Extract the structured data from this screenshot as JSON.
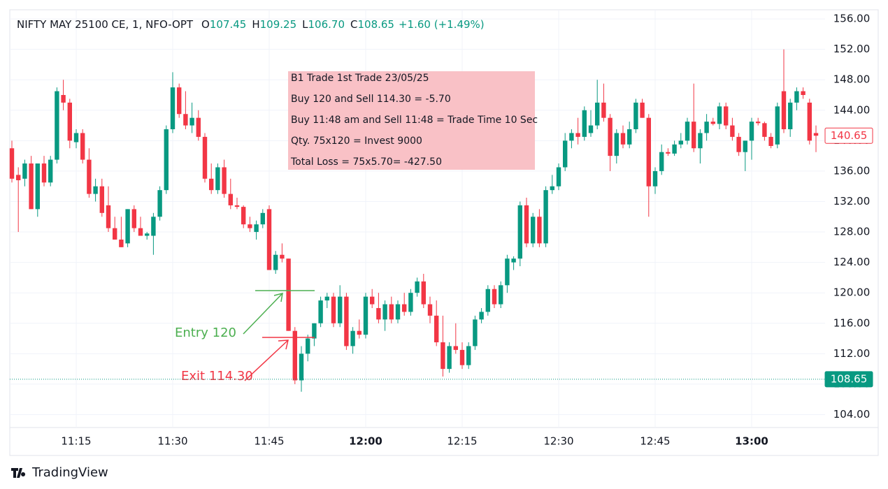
{
  "chart_data": {
    "type": "candlestick",
    "legend": {
      "symbol": "NIFTY MAY 25100 CE, 1, NFO-OPT",
      "items": [
        {
          "label": "O",
          "value": "107.45"
        },
        {
          "label": "H",
          "value": "109.25"
        },
        {
          "label": "L",
          "value": "106.70"
        },
        {
          "label": "C",
          "value": "108.65"
        }
      ],
      "change": "+1.60 (+1.49%)",
      "color": "#089981"
    },
    "up_color": "#089981",
    "down_color": "#f23645",
    "grid": true,
    "x": [
      "11:05",
      "11:06",
      "11:07",
      "11:08",
      "11:09",
      "11:10",
      "11:11",
      "11:12",
      "11:13",
      "11:14",
      "11:15",
      "11:16",
      "11:17",
      "11:18",
      "11:19",
      "11:20",
      "11:21",
      "11:22",
      "11:23",
      "11:24",
      "11:25",
      "11:26",
      "11:27",
      "11:28",
      "11:29",
      "11:30",
      "11:31",
      "11:32",
      "11:33",
      "11:34",
      "11:35",
      "11:36",
      "11:37",
      "11:38",
      "11:39",
      "11:40",
      "11:41",
      "11:42",
      "11:43",
      "11:44",
      "11:45",
      "11:46",
      "11:47",
      "11:48",
      "11:49",
      "11:50",
      "11:51",
      "11:52",
      "11:53",
      "11:54",
      "11:55",
      "11:56",
      "11:57",
      "11:58",
      "11:59",
      "12:00",
      "12:01",
      "12:02",
      "12:03",
      "12:04",
      "12:05",
      "12:06",
      "12:07",
      "12:08",
      "12:09",
      "12:10",
      "12:11",
      "12:12",
      "12:13",
      "12:14",
      "12:15",
      "12:16",
      "12:17",
      "12:18",
      "12:19",
      "12:20",
      "12:21",
      "12:22",
      "12:23",
      "12:24",
      "12:25",
      "12:26",
      "12:27",
      "12:28",
      "12:29",
      "12:30",
      "12:31",
      "12:32",
      "12:33",
      "12:34",
      "12:35",
      "12:36",
      "12:37",
      "12:38",
      "12:39",
      "12:40",
      "12:41",
      "12:42",
      "12:43",
      "12:44",
      "12:45",
      "12:46",
      "12:47",
      "12:48",
      "12:49",
      "12:50",
      "12:51",
      "12:52",
      "12:53",
      "12:54",
      "12:55",
      "12:56",
      "12:57",
      "12:58",
      "12:59",
      "13:00",
      "13:01",
      "13:02",
      "13:03",
      "13:04",
      "13:05",
      "13:06",
      "13:07",
      "13:08",
      "13:09",
      "13:10"
    ],
    "open": [
      139,
      135.5,
      135,
      137,
      131,
      137,
      134.5,
      137.5,
      146,
      145,
      139.8,
      141,
      137.5,
      133,
      134,
      131.5,
      128.5,
      127,
      126.5,
      131,
      128.5,
      127.5,
      127.5,
      130,
      133.5,
      141.5,
      147,
      143.5,
      142,
      143,
      140.5,
      135,
      133.5,
      136.5,
      133,
      131.5,
      131.3,
      129,
      128,
      129,
      131,
      123,
      125,
      124.5,
      115,
      108.5,
      112,
      114,
      116,
      119,
      119.5,
      116,
      119.5,
      113,
      115,
      114.5,
      119.5,
      118,
      116.5,
      118.5,
      116.5,
      118.5,
      117.5,
      120,
      121.5,
      118.5,
      117,
      113.5,
      110,
      113,
      112.5,
      110.5,
      113,
      116.5,
      117.5,
      120.5,
      118.5,
      121,
      124,
      124.5,
      131.5,
      126.5,
      130,
      126.5,
      133.5,
      134,
      136.5,
      140,
      141,
      140.5,
      141,
      142,
      145,
      143,
      138,
      141,
      139.5,
      141.5,
      145,
      143,
      134,
      136,
      138.5,
      138.3,
      139.5,
      140,
      142.5,
      139,
      141,
      142.5,
      142.2,
      144.5,
      142,
      140.5,
      138.5,
      140,
      142.5,
      142.3,
      140.5,
      139.5,
      146.5,
      141.5,
      145,
      146.5,
      145,
      141
    ],
    "high": [
      140,
      136.5,
      137.5,
      138,
      137,
      138,
      138,
      147,
      148,
      145.5,
      141.5,
      141.5,
      139,
      135,
      135,
      134,
      130,
      130,
      131,
      131.5,
      130,
      128,
      130.5,
      134,
      142,
      149,
      147.5,
      146.5,
      145,
      144,
      141,
      137,
      137,
      137.5,
      135,
      132.5,
      131.5,
      130,
      129.5,
      131,
      131.5,
      125.5,
      126.5,
      124.5,
      115.5,
      113,
      114.5,
      116,
      119.5,
      120,
      120,
      121,
      120,
      115.5,
      116.5,
      120,
      120.5,
      120,
      119,
      119.5,
      119,
      120,
      120.5,
      122,
      122.5,
      119.5,
      119,
      117,
      113.5,
      116,
      113.5,
      113.5,
      117,
      118,
      121,
      121,
      121.5,
      125,
      124.8,
      132,
      132.5,
      130.5,
      131,
      134,
      135.5,
      137,
      141,
      141.5,
      143,
      144.5,
      144,
      148,
      147.5,
      143.5,
      141.5,
      142,
      142.5,
      145.5,
      145.5,
      143.5,
      136.5,
      139.5,
      139,
      140,
      141,
      143,
      147.5,
      141.5,
      143.5,
      143,
      145,
      145,
      143,
      141,
      140,
      143,
      143,
      142.5,
      141,
      145,
      152,
      145.5,
      147,
      147,
      145.5,
      142
    ],
    "low": [
      134.5,
      128,
      134,
      131,
      130,
      134,
      134,
      137,
      144,
      139,
      139,
      137,
      132.5,
      132,
      130,
      128,
      127,
      126,
      126,
      128,
      127.5,
      127,
      125,
      129.5,
      133,
      141,
      143,
      141.5,
      141,
      140,
      134.5,
      133,
      133,
      132.5,
      131,
      131,
      128.5,
      128,
      127,
      128.5,
      123,
      122.5,
      124,
      115,
      108,
      107,
      111,
      113,
      115.5,
      118,
      115.5,
      115.5,
      112.5,
      112,
      114,
      114,
      118,
      116,
      115,
      116,
      116,
      117,
      117,
      119.5,
      118,
      116,
      113,
      109,
      109.5,
      112,
      110,
      110,
      112.5,
      116,
      117,
      118,
      118,
      120,
      123,
      123.5,
      126,
      126,
      126,
      126,
      133,
      133.5,
      136,
      139,
      139.5,
      140,
      140.5,
      141.5,
      142.5,
      136,
      137,
      139,
      139,
      141,
      143,
      130,
      133,
      135.5,
      138,
      138,
      139,
      139.5,
      138.5,
      137,
      140,
      142,
      141.5,
      141.5,
      140,
      138,
      136,
      137.5,
      142,
      140,
      139,
      139,
      141,
      140.5,
      144,
      145.5,
      139.5,
      138.5
    ],
    "close": [
      135,
      134.8,
      137,
      131,
      137,
      134.5,
      137.5,
      146.5,
      145,
      140,
      141,
      137.5,
      133,
      134,
      130.5,
      128.5,
      127,
      126,
      131,
      128.5,
      127.5,
      127.8,
      130,
      133.5,
      141.5,
      147,
      143.5,
      142,
      143,
      140.5,
      135,
      133.5,
      136.5,
      133,
      131.5,
      131.3,
      129,
      128.5,
      129,
      130.5,
      123,
      125,
      124.5,
      115,
      108.5,
      112,
      114,
      116,
      119,
      119.5,
      116,
      119.5,
      113,
      115,
      114.5,
      119.5,
      118.5,
      116.5,
      118.5,
      116.5,
      118.5,
      117.5,
      120,
      121.5,
      118.5,
      117,
      113.5,
      110,
      113,
      112.5,
      110.5,
      113,
      116.5,
      117.5,
      120.5,
      118.5,
      121,
      124.5,
      124.5,
      131.5,
      126.5,
      130,
      126.5,
      133.5,
      134,
      136.5,
      140,
      141,
      140.5,
      144,
      142,
      145,
      143,
      138,
      141,
      139.5,
      141.5,
      145,
      143,
      134,
      136,
      138.5,
      138.3,
      139.5,
      140,
      142.5,
      139,
      141,
      142.5,
      142.2,
      144.5,
      142,
      140.5,
      138.5,
      140,
      142.5,
      142.3,
      140.5,
      139.3,
      144.5,
      141.5,
      145,
      146.5,
      146,
      140,
      140.65
    ],
    "xticks": [
      "11:15",
      "11:30",
      "11:45",
      "12:00",
      "12:15",
      "12:30",
      "12:45",
      "13:00"
    ],
    "ylim": [
      102.3,
      157.2
    ],
    "yticks": [
      {
        "value": 104,
        "label": "104.00"
      },
      {
        "value": 108,
        "label": "108.00"
      },
      {
        "value": 112,
        "label": "112.00"
      },
      {
        "value": 116,
        "label": "116.00"
      },
      {
        "value": 120,
        "label": "120.00"
      },
      {
        "value": 124,
        "label": "124.00"
      },
      {
        "value": 128,
        "label": "128.00"
      },
      {
        "value": 132,
        "label": "132.00"
      },
      {
        "value": 136,
        "label": "136.00"
      },
      {
        "value": 140,
        "label": "140.00"
      },
      {
        "value": 144,
        "label": "144.00"
      },
      {
        "value": 148,
        "label": "148.00"
      },
      {
        "value": 152,
        "label": "152.00"
      },
      {
        "value": 156,
        "label": "156.00"
      }
    ],
    "price_labels": [
      {
        "value": 140.65,
        "style": "outline",
        "color": "#f23645"
      },
      {
        "value": 108.65,
        "style": "filled",
        "color": "#089981",
        "line": true
      }
    ],
    "note": {
      "lines": [
        "B1 Trade  1st Trade 23/05/25",
        "Buy 120 and Sell 114.30 =  -5.70",
        "Buy 11:48 am and Sell 11:48 = Trade Time 10 Sec",
        "Qty. 75x120 = Invest 9000",
        "Total Loss = 75x5.70= -427.50"
      ]
    },
    "entry_label": "Entry 120",
    "exit_label": "Exit 114.30",
    "branding": "TradingView"
  }
}
